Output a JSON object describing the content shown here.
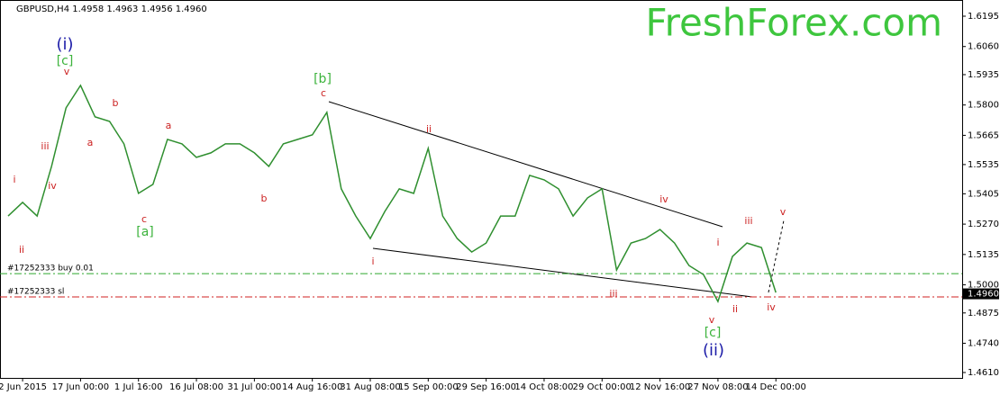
{
  "chart_data": {
    "type": "line",
    "header": "GBPUSD,H4  1.4958 1.4963 1.4956 1.4960",
    "watermark": "FreshForex.com",
    "categories": [
      null,
      "2 Jun 2015",
      null,
      null,
      null,
      "17 Jun 00:00",
      null,
      null,
      null,
      "1 Jul 16:00",
      null,
      null,
      null,
      "16 Jul 08:00",
      null,
      null,
      null,
      "31 Jul 00:00",
      null,
      null,
      null,
      "14 Aug 16:00",
      null,
      null,
      null,
      "31 Aug 08:00",
      null,
      null,
      null,
      "15 Sep 00:00",
      null,
      null,
      null,
      "29 Sep 16:00",
      null,
      null,
      null,
      "14 Oct 08:00",
      null,
      null,
      null,
      "29 Oct 00:00",
      null,
      null,
      null,
      "12 Nov 16:00",
      null,
      null,
      null,
      "27 Nov 08:00",
      null,
      null,
      null,
      "14 Dec 00:00"
    ],
    "series": [
      {
        "name": "GBPUSD,H4",
        "color": "#2f8f2f",
        "values": [
          1.5306,
          1.5367,
          1.5306,
          1.5527,
          1.5787,
          1.5887,
          1.5747,
          1.5727,
          1.5627,
          1.5407,
          1.5447,
          1.5647,
          1.5627,
          1.5567,
          1.5587,
          1.5627,
          1.5627,
          1.5587,
          1.5527,
          1.5627,
          1.5647,
          1.5667,
          1.5767,
          1.5427,
          1.5306,
          1.5206,
          1.5326,
          1.5427,
          1.5407,
          1.5607,
          1.5306,
          1.5206,
          1.5146,
          1.5186,
          1.5306,
          1.5306,
          1.5487,
          1.5467,
          1.5427,
          1.5306,
          1.5387,
          1.5427,
          1.5066,
          1.5186,
          1.5206,
          1.5246,
          1.5186,
          1.5086,
          1.5046,
          1.4926,
          1.5126,
          1.5186,
          1.5166,
          1.4966
        ]
      }
    ],
    "ylim": [
      1.4586,
      1.6267
    ],
    "yticks": [
      1.6195,
      {
        "value": 1.606,
        "label": "1.6060"
      },
      1.5935,
      {
        "value": 1.58,
        "label": "1.5800"
      },
      1.5665,
      1.5535,
      1.5405,
      {
        "value": 1.527,
        "label": "1.5270"
      },
      1.5135,
      {
        "value": 1.5,
        "label": "1.5000"
      },
      1.4875,
      {
        "value": 1.474,
        "label": "1.4740"
      },
      {
        "value": 1.461,
        "label": "1.4610"
      }
    ],
    "price_lines": [
      {
        "name": "#17252333 buy 0.01",
        "value": 1.505,
        "color": "#2fa82f"
      },
      {
        "name": "#17252333 sl",
        "value": 1.4946,
        "color": "#d02020"
      }
    ],
    "current_price": {
      "value": 1.496,
      "label": "1.4960"
    },
    "annotations": [
      {
        "text": "(i)",
        "color": "#1c1ca8"
      },
      {
        "text": "[c]",
        "color": "#3cb33c"
      },
      {
        "text": "v",
        "color": "#cc2222"
      },
      {
        "text": "i",
        "color": "#cc2222"
      },
      {
        "text": "ii",
        "color": "#cc2222"
      },
      {
        "text": "iii",
        "color": "#cc2222"
      },
      {
        "text": "iv",
        "color": "#cc2222"
      },
      {
        "text": "a",
        "color": "#cc2222"
      },
      {
        "text": "b",
        "color": "#cc2222"
      },
      {
        "text": "c",
        "color": "#cc2222"
      },
      {
        "text": "[a]",
        "color": "#3cb33c"
      },
      {
        "text": "a",
        "color": "#cc2222"
      },
      {
        "text": "b",
        "color": "#cc2222"
      },
      {
        "text": "[b]",
        "color": "#3cb33c"
      },
      {
        "text": "c",
        "color": "#cc2222"
      },
      {
        "text": "i",
        "color": "#cc2222"
      },
      {
        "text": "ii",
        "color": "#cc2222"
      },
      {
        "text": "iii",
        "color": "#cc2222"
      },
      {
        "text": "iv",
        "color": "#cc2222"
      },
      {
        "text": "v",
        "color": "#cc2222"
      },
      {
        "text": "[c]",
        "color": "#3cb33c"
      },
      {
        "text": "(ii)",
        "color": "#1c1ca8"
      },
      {
        "text": "i",
        "color": "#cc2222"
      },
      {
        "text": "ii",
        "color": "#cc2222"
      },
      {
        "text": "iii",
        "color": "#cc2222"
      },
      {
        "text": "iv",
        "color": "#cc2222"
      },
      {
        "text": "v",
        "color": "#cc2222"
      }
    ]
  }
}
